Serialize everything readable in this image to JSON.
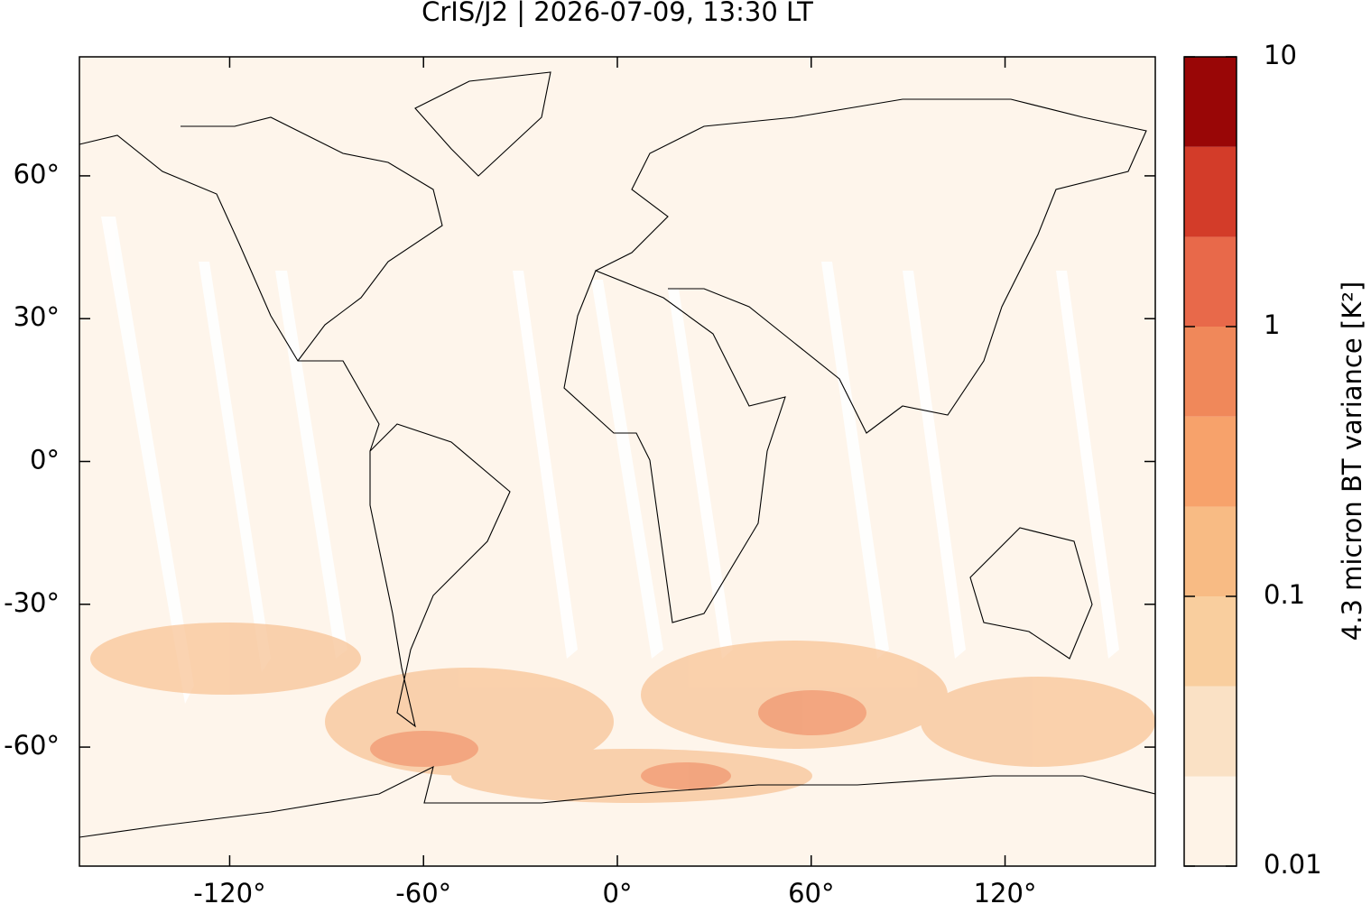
{
  "chart_data": {
    "type": "map",
    "title": "CrIS/J2 | 2026-07-09, 13:30 LT",
    "xlim": [
      -166.5,
      166.5
    ],
    "ylim": [
      -85,
      85
    ],
    "xticks": [
      {
        "value": -120,
        "label": "-120°"
      },
      {
        "value": -60,
        "label": "-60°"
      },
      {
        "value": 0,
        "label": "0°"
      },
      {
        "value": 60,
        "label": "60°"
      },
      {
        "value": 120,
        "label": "120°"
      }
    ],
    "yticks": [
      {
        "value": 60,
        "label": "60°"
      },
      {
        "value": 30,
        "label": "30°"
      },
      {
        "value": 0,
        "label": "0°"
      },
      {
        "value": -30,
        "label": "-30°"
      },
      {
        "value": -60,
        "label": "-60°"
      }
    ],
    "colorbar": {
      "label": "4.3 micron BT variance [K²]",
      "log": true,
      "lim": [
        0.01,
        10
      ],
      "ticks": [
        0.01,
        0.1,
        1,
        10
      ],
      "levels": [
        0.01,
        0.0215,
        0.0464,
        0.1,
        0.215,
        0.464,
        1,
        2.15,
        4.64,
        10
      ],
      "colors": [
        "#fef3e7",
        "#fae1c5",
        "#f9ce9e",
        "#f8bb84",
        "#f7a26b",
        "#f0885a",
        "#e8694a",
        "#d33c29",
        "#990606"
      ]
    }
  }
}
